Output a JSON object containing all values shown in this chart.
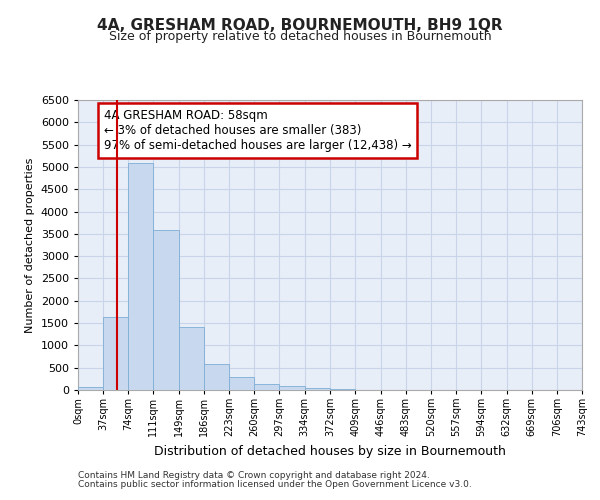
{
  "title": "4A, GRESHAM ROAD, BOURNEMOUTH, BH9 1QR",
  "subtitle": "Size of property relative to detached houses in Bournemouth",
  "xlabel": "Distribution of detached houses by size in Bournemouth",
  "ylabel": "Number of detached properties",
  "footer1": "Contains HM Land Registry data © Crown copyright and database right 2024.",
  "footer2": "Contains public sector information licensed under the Open Government Licence v3.0.",
  "annotation_line1": "4A GRESHAM ROAD: 58sqm",
  "annotation_line2": "← 3% of detached houses are smaller (383)",
  "annotation_line3": "97% of semi-detached houses are larger (12,438) →",
  "property_size": 58,
  "bar_color": "#c8d9ef",
  "bar_edge_color": "#7daed4",
  "vline_color": "#cc0000",
  "annotation_box_color": "#ffffff",
  "annotation_box_edge": "#cc0000",
  "grid_color": "#c8d4e8",
  "background_color": "#e8eef8",
  "ylim": [
    0,
    6500
  ],
  "yticks": [
    0,
    500,
    1000,
    1500,
    2000,
    2500,
    3000,
    3500,
    4000,
    4500,
    5000,
    5500,
    6000,
    6500
  ],
  "bin_edges": [
    0,
    37,
    74,
    111,
    149,
    186,
    223,
    260,
    297,
    334,
    372,
    409,
    446,
    483,
    520,
    557,
    594,
    632,
    669,
    706,
    743
  ],
  "bin_labels": [
    "0sqm",
    "37sqm",
    "74sqm",
    "111sqm",
    "149sqm",
    "186sqm",
    "223sqm",
    "260sqm",
    "297sqm",
    "334sqm",
    "372sqm",
    "409sqm",
    "446sqm",
    "483sqm",
    "520sqm",
    "557sqm",
    "594sqm",
    "632sqm",
    "669sqm",
    "706sqm",
    "743sqm"
  ],
  "bar_heights": [
    60,
    1640,
    5080,
    3580,
    1420,
    590,
    295,
    145,
    80,
    45,
    15,
    5,
    0,
    0,
    0,
    0,
    0,
    0,
    0,
    0
  ],
  "title_fontsize": 11,
  "subtitle_fontsize": 9,
  "xlabel_fontsize": 9,
  "ylabel_fontsize": 8,
  "tick_fontsize": 8,
  "xtick_fontsize": 7,
  "footer_fontsize": 6.5,
  "annotation_fontsize": 8.5
}
